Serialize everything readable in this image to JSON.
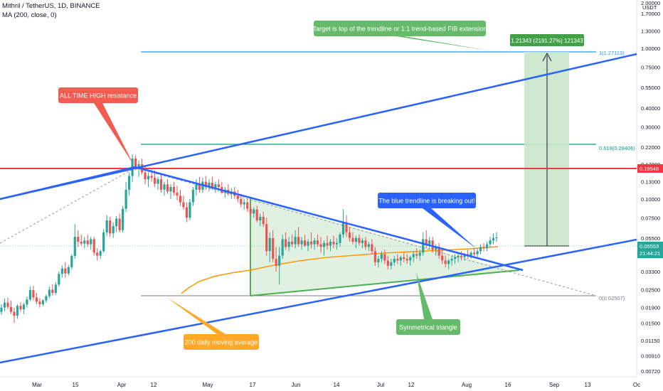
{
  "header": {
    "symbol_line": "Mithril / TetherUS, 1D, BINANCE",
    "indicator_line": "MA (200, close, 0)"
  },
  "axis": {
    "currency": "USDT",
    "y_ticks": [
      "2.00000",
      "1.70000",
      "1.30000",
      "1.00000",
      "0.75000",
      "0.55000",
      "0.40000",
      "0.30000",
      "0.22000",
      "0.17000",
      "0.13000",
      "0.10000",
      "0.07500",
      "0.05500",
      "0.04300",
      "0.03300",
      "0.02500",
      "0.01900",
      "0.01500",
      "0.01150",
      "0.00910",
      "0.00720"
    ],
    "x_ticks": [
      "Mar",
      "15",
      "Apr",
      "12",
      "May",
      "17",
      "Jun",
      "14",
      "Jul",
      "12",
      "Aug",
      "16",
      "Sep",
      "13",
      "Oc"
    ]
  },
  "price_tags": {
    "resistance": "0.19548",
    "last_price": "0.05553",
    "countdown": "21:44:21"
  },
  "fib": {
    "level_1": "1(1.27113)",
    "level_0618": "0.618(0.28406)",
    "level_0": "0(0.02507)"
  },
  "target_box_label": "1.21343 (2191.27%) 121343",
  "annotations": {
    "target": "Target is top of the trendline or 1:1 trend-based FIB extension",
    "ath": "ALL TIME HIGH resistance",
    "breakout": "The blue trendline is breaking out!",
    "ma": "200 daily moving average",
    "triangle": "Symmetrical triangle"
  },
  "colors": {
    "blue_trend": "#2962ff",
    "resistance": "#f23645",
    "fib1": "#2196f3",
    "fib0618": "#089981",
    "fib0": "#787b86",
    "ma": "#ff9800",
    "triangle": "#4caf50",
    "up_candle": "#26a69a",
    "down_candle": "#ef5350",
    "target_fill": "#c8e6c9",
    "ann_green": "#66bb6a",
    "ann_red": "#f15b50",
    "ann_blue": "#2962ff",
    "ann_orange": "#ffa726"
  },
  "chart_data": {
    "type": "candlestick",
    "y_scale": "log",
    "ylim": [
      0.0069,
      2.1
    ],
    "ohlc": [
      {
        "o": 0.0178,
        "h": 0.02,
        "l": 0.017,
        "c": 0.019
      },
      {
        "o": 0.019,
        "h": 0.0218,
        "l": 0.018,
        "c": 0.0205
      },
      {
        "o": 0.0205,
        "h": 0.0222,
        "l": 0.0186,
        "c": 0.0192
      },
      {
        "o": 0.0192,
        "h": 0.0211,
        "l": 0.0172,
        "c": 0.0178
      },
      {
        "o": 0.0178,
        "h": 0.019,
        "l": 0.015,
        "c": 0.0168
      },
      {
        "o": 0.0168,
        "h": 0.02,
        "l": 0.016,
        "c": 0.0195
      },
      {
        "o": 0.0195,
        "h": 0.0206,
        "l": 0.0178,
        "c": 0.0185
      },
      {
        "o": 0.0185,
        "h": 0.0205,
        "l": 0.0172,
        "c": 0.0199
      },
      {
        "o": 0.0199,
        "h": 0.0225,
        "l": 0.019,
        "c": 0.0215
      },
      {
        "o": 0.0215,
        "h": 0.0262,
        "l": 0.021,
        "c": 0.0248
      },
      {
        "o": 0.0248,
        "h": 0.0265,
        "l": 0.0212,
        "c": 0.0222
      },
      {
        "o": 0.0222,
        "h": 0.0238,
        "l": 0.02,
        "c": 0.0208
      },
      {
        "o": 0.0208,
        "h": 0.022,
        "l": 0.019,
        "c": 0.02
      },
      {
        "o": 0.02,
        "h": 0.0216,
        "l": 0.0194,
        "c": 0.0212
      },
      {
        "o": 0.0212,
        "h": 0.0232,
        "l": 0.0205,
        "c": 0.0226
      },
      {
        "o": 0.0226,
        "h": 0.0262,
        "l": 0.022,
        "c": 0.025
      },
      {
        "o": 0.025,
        "h": 0.0272,
        "l": 0.0228,
        "c": 0.0238
      },
      {
        "o": 0.0238,
        "h": 0.028,
        "l": 0.023,
        "c": 0.027
      },
      {
        "o": 0.027,
        "h": 0.033,
        "l": 0.0262,
        "c": 0.0318
      },
      {
        "o": 0.0318,
        "h": 0.0362,
        "l": 0.03,
        "c": 0.0345
      },
      {
        "o": 0.0345,
        "h": 0.038,
        "l": 0.03,
        "c": 0.032
      },
      {
        "o": 0.032,
        "h": 0.0365,
        "l": 0.031,
        "c": 0.0352
      },
      {
        "o": 0.0352,
        "h": 0.043,
        "l": 0.034,
        "c": 0.0418
      },
      {
        "o": 0.0418,
        "h": 0.068,
        "l": 0.04,
        "c": 0.056
      },
      {
        "o": 0.056,
        "h": 0.062,
        "l": 0.048,
        "c": 0.052
      },
      {
        "o": 0.052,
        "h": 0.058,
        "l": 0.049,
        "c": 0.0505
      },
      {
        "o": 0.0505,
        "h": 0.056,
        "l": 0.047,
        "c": 0.053
      },
      {
        "o": 0.053,
        "h": 0.058,
        "l": 0.048,
        "c": 0.05
      },
      {
        "o": 0.05,
        "h": 0.056,
        "l": 0.046,
        "c": 0.054
      },
      {
        "o": 0.054,
        "h": 0.056,
        "l": 0.042,
        "c": 0.044
      },
      {
        "o": 0.044,
        "h": 0.047,
        "l": 0.039,
        "c": 0.042
      },
      {
        "o": 0.042,
        "h": 0.046,
        "l": 0.04,
        "c": 0.045
      },
      {
        "o": 0.045,
        "h": 0.063,
        "l": 0.044,
        "c": 0.06
      },
      {
        "o": 0.06,
        "h": 0.078,
        "l": 0.057,
        "c": 0.072
      },
      {
        "o": 0.072,
        "h": 0.076,
        "l": 0.056,
        "c": 0.059
      },
      {
        "o": 0.059,
        "h": 0.07,
        "l": 0.055,
        "c": 0.066
      },
      {
        "o": 0.066,
        "h": 0.077,
        "l": 0.06,
        "c": 0.074
      },
      {
        "o": 0.074,
        "h": 0.08,
        "l": 0.06,
        "c": 0.062
      },
      {
        "o": 0.062,
        "h": 0.09,
        "l": 0.06,
        "c": 0.086
      },
      {
        "o": 0.086,
        "h": 0.13,
        "l": 0.082,
        "c": 0.115
      },
      {
        "o": 0.115,
        "h": 0.15,
        "l": 0.105,
        "c": 0.142
      },
      {
        "o": 0.142,
        "h": 0.198,
        "l": 0.13,
        "c": 0.185
      },
      {
        "o": 0.185,
        "h": 0.195,
        "l": 0.155,
        "c": 0.16
      },
      {
        "o": 0.16,
        "h": 0.18,
        "l": 0.14,
        "c": 0.17
      },
      {
        "o": 0.17,
        "h": 0.185,
        "l": 0.145,
        "c": 0.15
      },
      {
        "o": 0.15,
        "h": 0.165,
        "l": 0.125,
        "c": 0.135
      },
      {
        "o": 0.135,
        "h": 0.15,
        "l": 0.12,
        "c": 0.142
      },
      {
        "o": 0.142,
        "h": 0.16,
        "l": 0.13,
        "c": 0.138
      },
      {
        "o": 0.138,
        "h": 0.155,
        "l": 0.12,
        "c": 0.126
      },
      {
        "o": 0.126,
        "h": 0.14,
        "l": 0.115,
        "c": 0.135
      },
      {
        "o": 0.135,
        "h": 0.145,
        "l": 0.11,
        "c": 0.115
      },
      {
        "o": 0.115,
        "h": 0.13,
        "l": 0.105,
        "c": 0.125
      },
      {
        "o": 0.125,
        "h": 0.135,
        "l": 0.108,
        "c": 0.112
      },
      {
        "o": 0.112,
        "h": 0.125,
        "l": 0.1,
        "c": 0.12
      },
      {
        "o": 0.12,
        "h": 0.13,
        "l": 0.105,
        "c": 0.11
      },
      {
        "o": 0.11,
        "h": 0.122,
        "l": 0.098,
        "c": 0.105
      },
      {
        "o": 0.105,
        "h": 0.115,
        "l": 0.09,
        "c": 0.095
      },
      {
        "o": 0.095,
        "h": 0.105,
        "l": 0.085,
        "c": 0.088
      },
      {
        "o": 0.088,
        "h": 0.095,
        "l": 0.07,
        "c": 0.075
      },
      {
        "o": 0.075,
        "h": 0.1,
        "l": 0.072,
        "c": 0.095
      },
      {
        "o": 0.095,
        "h": 0.12,
        "l": 0.09,
        "c": 0.115
      },
      {
        "o": 0.115,
        "h": 0.135,
        "l": 0.105,
        "c": 0.125
      },
      {
        "o": 0.125,
        "h": 0.14,
        "l": 0.11,
        "c": 0.115
      },
      {
        "o": 0.115,
        "h": 0.138,
        "l": 0.11,
        "c": 0.13
      },
      {
        "o": 0.13,
        "h": 0.142,
        "l": 0.115,
        "c": 0.12
      },
      {
        "o": 0.12,
        "h": 0.135,
        "l": 0.112,
        "c": 0.128
      },
      {
        "o": 0.128,
        "h": 0.14,
        "l": 0.115,
        "c": 0.118
      },
      {
        "o": 0.118,
        "h": 0.13,
        "l": 0.11,
        "c": 0.125
      },
      {
        "o": 0.125,
        "h": 0.135,
        "l": 0.115,
        "c": 0.12
      },
      {
        "o": 0.12,
        "h": 0.13,
        "l": 0.108,
        "c": 0.11
      },
      {
        "o": 0.11,
        "h": 0.12,
        "l": 0.102,
        "c": 0.115
      },
      {
        "o": 0.115,
        "h": 0.125,
        "l": 0.105,
        "c": 0.108
      },
      {
        "o": 0.108,
        "h": 0.118,
        "l": 0.1,
        "c": 0.112
      },
      {
        "o": 0.112,
        "h": 0.12,
        "l": 0.1,
        "c": 0.105
      },
      {
        "o": 0.105,
        "h": 0.115,
        "l": 0.095,
        "c": 0.1
      },
      {
        "o": 0.1,
        "h": 0.108,
        "l": 0.088,
        "c": 0.092
      },
      {
        "o": 0.092,
        "h": 0.1,
        "l": 0.085,
        "c": 0.095
      },
      {
        "o": 0.095,
        "h": 0.1,
        "l": 0.082,
        "c": 0.086
      },
      {
        "o": 0.086,
        "h": 0.093,
        "l": 0.078,
        "c": 0.08
      },
      {
        "o": 0.08,
        "h": 0.088,
        "l": 0.075,
        "c": 0.085
      },
      {
        "o": 0.085,
        "h": 0.09,
        "l": 0.07,
        "c": 0.072
      },
      {
        "o": 0.072,
        "h": 0.08,
        "l": 0.066,
        "c": 0.076
      },
      {
        "o": 0.076,
        "h": 0.082,
        "l": 0.065,
        "c": 0.068
      },
      {
        "o": 0.068,
        "h": 0.075,
        "l": 0.042,
        "c": 0.045
      },
      {
        "o": 0.045,
        "h": 0.06,
        "l": 0.038,
        "c": 0.055
      },
      {
        "o": 0.055,
        "h": 0.062,
        "l": 0.038,
        "c": 0.04
      },
      {
        "o": 0.04,
        "h": 0.048,
        "l": 0.033,
        "c": 0.036
      },
      {
        "o": 0.036,
        "h": 0.048,
        "l": 0.027,
        "c": 0.042
      },
      {
        "o": 0.042,
        "h": 0.058,
        "l": 0.04,
        "c": 0.054
      },
      {
        "o": 0.054,
        "h": 0.06,
        "l": 0.046,
        "c": 0.048
      },
      {
        "o": 0.048,
        "h": 0.056,
        "l": 0.045,
        "c": 0.052
      },
      {
        "o": 0.052,
        "h": 0.058,
        "l": 0.048,
        "c": 0.05
      },
      {
        "o": 0.05,
        "h": 0.062,
        "l": 0.047,
        "c": 0.056
      },
      {
        "o": 0.056,
        "h": 0.065,
        "l": 0.048,
        "c": 0.05
      },
      {
        "o": 0.05,
        "h": 0.056,
        "l": 0.046,
        "c": 0.053
      },
      {
        "o": 0.053,
        "h": 0.058,
        "l": 0.048,
        "c": 0.049
      },
      {
        "o": 0.049,
        "h": 0.054,
        "l": 0.045,
        "c": 0.052
      },
      {
        "o": 0.052,
        "h": 0.06,
        "l": 0.047,
        "c": 0.05
      },
      {
        "o": 0.05,
        "h": 0.055,
        "l": 0.046,
        "c": 0.053
      },
      {
        "o": 0.053,
        "h": 0.058,
        "l": 0.048,
        "c": 0.05
      },
      {
        "o": 0.05,
        "h": 0.056,
        "l": 0.044,
        "c": 0.048
      },
      {
        "o": 0.048,
        "h": 0.053,
        "l": 0.042,
        "c": 0.051
      },
      {
        "o": 0.051,
        "h": 0.057,
        "l": 0.046,
        "c": 0.049
      },
      {
        "o": 0.049,
        "h": 0.054,
        "l": 0.045,
        "c": 0.052
      },
      {
        "o": 0.052,
        "h": 0.057,
        "l": 0.047,
        "c": 0.05
      },
      {
        "o": 0.05,
        "h": 0.055,
        "l": 0.046,
        "c": 0.051
      },
      {
        "o": 0.051,
        "h": 0.06,
        "l": 0.048,
        "c": 0.058
      },
      {
        "o": 0.058,
        "h": 0.085,
        "l": 0.055,
        "c": 0.07
      },
      {
        "o": 0.07,
        "h": 0.078,
        "l": 0.056,
        "c": 0.06
      },
      {
        "o": 0.06,
        "h": 0.065,
        "l": 0.052,
        "c": 0.055
      },
      {
        "o": 0.055,
        "h": 0.06,
        "l": 0.05,
        "c": 0.052
      },
      {
        "o": 0.052,
        "h": 0.057,
        "l": 0.047,
        "c": 0.055
      },
      {
        "o": 0.055,
        "h": 0.058,
        "l": 0.049,
        "c": 0.051
      },
      {
        "o": 0.051,
        "h": 0.055,
        "l": 0.047,
        "c": 0.053
      },
      {
        "o": 0.053,
        "h": 0.056,
        "l": 0.046,
        "c": 0.048
      },
      {
        "o": 0.048,
        "h": 0.052,
        "l": 0.045,
        "c": 0.05
      },
      {
        "o": 0.05,
        "h": 0.054,
        "l": 0.043,
        "c": 0.045
      },
      {
        "o": 0.045,
        "h": 0.048,
        "l": 0.036,
        "c": 0.038
      },
      {
        "o": 0.038,
        "h": 0.042,
        "l": 0.035,
        "c": 0.04
      },
      {
        "o": 0.04,
        "h": 0.045,
        "l": 0.038,
        "c": 0.043
      },
      {
        "o": 0.043,
        "h": 0.046,
        "l": 0.037,
        "c": 0.039
      },
      {
        "o": 0.039,
        "h": 0.042,
        "l": 0.034,
        "c": 0.036
      },
      {
        "o": 0.036,
        "h": 0.04,
        "l": 0.034,
        "c": 0.038
      },
      {
        "o": 0.038,
        "h": 0.042,
        "l": 0.036,
        "c": 0.04
      },
      {
        "o": 0.04,
        "h": 0.043,
        "l": 0.037,
        "c": 0.039
      },
      {
        "o": 0.039,
        "h": 0.042,
        "l": 0.036,
        "c": 0.041
      },
      {
        "o": 0.041,
        "h": 0.044,
        "l": 0.038,
        "c": 0.04
      },
      {
        "o": 0.04,
        "h": 0.043,
        "l": 0.037,
        "c": 0.039
      },
      {
        "o": 0.039,
        "h": 0.042,
        "l": 0.036,
        "c": 0.041
      },
      {
        "o": 0.041,
        "h": 0.045,
        "l": 0.038,
        "c": 0.043
      },
      {
        "o": 0.043,
        "h": 0.047,
        "l": 0.04,
        "c": 0.042
      },
      {
        "o": 0.042,
        "h": 0.046,
        "l": 0.039,
        "c": 0.044
      },
      {
        "o": 0.044,
        "h": 0.06,
        "l": 0.042,
        "c": 0.054
      },
      {
        "o": 0.054,
        "h": 0.062,
        "l": 0.047,
        "c": 0.05
      },
      {
        "o": 0.05,
        "h": 0.056,
        "l": 0.046,
        "c": 0.053
      },
      {
        "o": 0.053,
        "h": 0.056,
        "l": 0.044,
        "c": 0.046
      },
      {
        "o": 0.046,
        "h": 0.05,
        "l": 0.042,
        "c": 0.048
      },
      {
        "o": 0.048,
        "h": 0.051,
        "l": 0.04,
        "c": 0.042
      },
      {
        "o": 0.042,
        "h": 0.046,
        "l": 0.037,
        "c": 0.039
      },
      {
        "o": 0.039,
        "h": 0.042,
        "l": 0.035,
        "c": 0.037
      },
      {
        "o": 0.037,
        "h": 0.04,
        "l": 0.034,
        "c": 0.039
      },
      {
        "o": 0.039,
        "h": 0.042,
        "l": 0.036,
        "c": 0.04
      },
      {
        "o": 0.04,
        "h": 0.043,
        "l": 0.037,
        "c": 0.041
      },
      {
        "o": 0.041,
        "h": 0.044,
        "l": 0.038,
        "c": 0.042
      },
      {
        "o": 0.042,
        "h": 0.045,
        "l": 0.039,
        "c": 0.041
      },
      {
        "o": 0.041,
        "h": 0.044,
        "l": 0.039,
        "c": 0.043
      },
      {
        "o": 0.043,
        "h": 0.046,
        "l": 0.04,
        "c": 0.042
      },
      {
        "o": 0.042,
        "h": 0.045,
        "l": 0.04,
        "c": 0.044
      },
      {
        "o": 0.044,
        "h": 0.047,
        "l": 0.041,
        "c": 0.043
      },
      {
        "o": 0.043,
        "h": 0.047,
        "l": 0.041,
        "c": 0.045
      },
      {
        "o": 0.045,
        "h": 0.05,
        "l": 0.043,
        "c": 0.048
      },
      {
        "o": 0.048,
        "h": 0.051,
        "l": 0.045,
        "c": 0.047
      },
      {
        "o": 0.047,
        "h": 0.052,
        "l": 0.045,
        "c": 0.05
      },
      {
        "o": 0.05,
        "h": 0.056,
        "l": 0.048,
        "c": 0.053
      },
      {
        "o": 0.053,
        "h": 0.059,
        "l": 0.05,
        "c": 0.055
      },
      {
        "o": 0.055,
        "h": 0.06,
        "l": 0.052,
        "c": 0.0555
      }
    ]
  }
}
